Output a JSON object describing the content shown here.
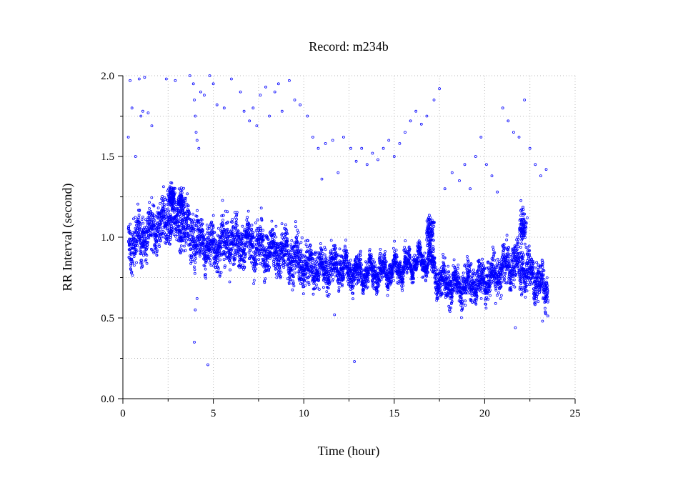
{
  "chart_data": {
    "type": "scatter",
    "title": "Record:  m234b",
    "xlabel": "Time (hour)",
    "ylabel": "RR Interval (second)",
    "xlim": [
      0,
      25
    ],
    "ylim": [
      0.0,
      2.0
    ],
    "x_ticks": [
      "0",
      "5",
      "10",
      "15",
      "20",
      "25"
    ],
    "y_ticks": [
      "0.0",
      "0.5",
      "1.0",
      "1.5",
      "2.0"
    ],
    "x_grid_minor_step": 2.5,
    "y_grid_minor_step": 0.25,
    "grid": true,
    "marker": "open-circle",
    "series_color": "#0000ff",
    "x_range_of_record": [
      0.3,
      23.5
    ],
    "main_trend": [
      {
        "x": 0.3,
        "y": 0.95,
        "spread": 0.16
      },
      {
        "x": 1.0,
        "y": 1.0,
        "spread": 0.17
      },
      {
        "x": 2.0,
        "y": 1.08,
        "spread": 0.17
      },
      {
        "x": 3.0,
        "y": 1.1,
        "spread": 0.17
      },
      {
        "x": 4.0,
        "y": 1.0,
        "spread": 0.18
      },
      {
        "x": 5.0,
        "y": 0.93,
        "spread": 0.17
      },
      {
        "x": 6.0,
        "y": 0.98,
        "spread": 0.17
      },
      {
        "x": 7.0,
        "y": 0.95,
        "spread": 0.16
      },
      {
        "x": 8.0,
        "y": 0.92,
        "spread": 0.16
      },
      {
        "x": 9.0,
        "y": 0.9,
        "spread": 0.16
      },
      {
        "x": 10.0,
        "y": 0.83,
        "spread": 0.16
      },
      {
        "x": 11.0,
        "y": 0.8,
        "spread": 0.14
      },
      {
        "x": 12.0,
        "y": 0.82,
        "spread": 0.12
      },
      {
        "x": 13.0,
        "y": 0.78,
        "spread": 0.1
      },
      {
        "x": 14.0,
        "y": 0.78,
        "spread": 0.1
      },
      {
        "x": 15.0,
        "y": 0.8,
        "spread": 0.1
      },
      {
        "x": 16.0,
        "y": 0.84,
        "spread": 0.08
      },
      {
        "x": 17.0,
        "y": 0.86,
        "spread": 0.08
      },
      {
        "x": 17.5,
        "y": 0.72,
        "spread": 0.14
      },
      {
        "x": 18.5,
        "y": 0.7,
        "spread": 0.13
      },
      {
        "x": 19.5,
        "y": 0.72,
        "spread": 0.13
      },
      {
        "x": 20.5,
        "y": 0.76,
        "spread": 0.14
      },
      {
        "x": 21.5,
        "y": 0.84,
        "spread": 0.15
      },
      {
        "x": 22.5,
        "y": 0.78,
        "spread": 0.16
      },
      {
        "x": 23.5,
        "y": 0.66,
        "spread": 0.12
      }
    ],
    "outliers": [
      {
        "x": 0.3,
        "y": 1.62
      },
      {
        "x": 0.4,
        "y": 1.97
      },
      {
        "x": 0.5,
        "y": 1.8
      },
      {
        "x": 0.7,
        "y": 1.5
      },
      {
        "x": 0.9,
        "y": 1.98
      },
      {
        "x": 1.0,
        "y": 1.75
      },
      {
        "x": 1.1,
        "y": 1.78
      },
      {
        "x": 1.2,
        "y": 1.99
      },
      {
        "x": 1.4,
        "y": 1.77
      },
      {
        "x": 1.6,
        "y": 1.69
      },
      {
        "x": 2.4,
        "y": 1.98
      },
      {
        "x": 2.9,
        "y": 1.97
      },
      {
        "x": 3.7,
        "y": 2.0
      },
      {
        "x": 3.9,
        "y": 1.95
      },
      {
        "x": 3.95,
        "y": 1.85
      },
      {
        "x": 4.0,
        "y": 1.75
      },
      {
        "x": 4.05,
        "y": 1.65
      },
      {
        "x": 4.1,
        "y": 1.6
      },
      {
        "x": 4.2,
        "y": 1.55
      },
      {
        "x": 4.3,
        "y": 1.9
      },
      {
        "x": 4.5,
        "y": 1.88
      },
      {
        "x": 4.8,
        "y": 2.0
      },
      {
        "x": 5.0,
        "y": 1.95
      },
      {
        "x": 5.2,
        "y": 1.82
      },
      {
        "x": 5.6,
        "y": 1.8
      },
      {
        "x": 6.0,
        "y": 1.98
      },
      {
        "x": 6.5,
        "y": 1.9
      },
      {
        "x": 6.7,
        "y": 1.78
      },
      {
        "x": 7.0,
        "y": 1.72
      },
      {
        "x": 7.2,
        "y": 1.8
      },
      {
        "x": 7.4,
        "y": 1.69
      },
      {
        "x": 7.6,
        "y": 1.88
      },
      {
        "x": 7.9,
        "y": 1.93
      },
      {
        "x": 8.1,
        "y": 1.75
      },
      {
        "x": 8.4,
        "y": 1.9
      },
      {
        "x": 8.6,
        "y": 1.95
      },
      {
        "x": 8.8,
        "y": 1.78
      },
      {
        "x": 9.2,
        "y": 1.97
      },
      {
        "x": 9.5,
        "y": 1.85
      },
      {
        "x": 9.8,
        "y": 1.82
      },
      {
        "x": 10.2,
        "y": 1.75
      },
      {
        "x": 10.5,
        "y": 1.62
      },
      {
        "x": 10.8,
        "y": 1.55
      },
      {
        "x": 11.0,
        "y": 1.36
      },
      {
        "x": 11.2,
        "y": 1.58
      },
      {
        "x": 11.6,
        "y": 1.6
      },
      {
        "x": 11.9,
        "y": 1.4
      },
      {
        "x": 12.2,
        "y": 1.62
      },
      {
        "x": 12.6,
        "y": 1.55
      },
      {
        "x": 12.9,
        "y": 1.47
      },
      {
        "x": 13.2,
        "y": 1.55
      },
      {
        "x": 13.5,
        "y": 1.45
      },
      {
        "x": 13.8,
        "y": 1.52
      },
      {
        "x": 14.1,
        "y": 1.48
      },
      {
        "x": 14.4,
        "y": 1.55
      },
      {
        "x": 14.7,
        "y": 1.6
      },
      {
        "x": 15.0,
        "y": 1.5
      },
      {
        "x": 15.3,
        "y": 1.58
      },
      {
        "x": 15.6,
        "y": 1.65
      },
      {
        "x": 15.9,
        "y": 1.72
      },
      {
        "x": 16.2,
        "y": 1.78
      },
      {
        "x": 16.5,
        "y": 1.7
      },
      {
        "x": 16.8,
        "y": 1.75
      },
      {
        "x": 17.2,
        "y": 1.85
      },
      {
        "x": 17.5,
        "y": 1.92
      },
      {
        "x": 17.8,
        "y": 1.3
      },
      {
        "x": 18.2,
        "y": 1.4
      },
      {
        "x": 18.6,
        "y": 1.35
      },
      {
        "x": 18.9,
        "y": 1.45
      },
      {
        "x": 19.2,
        "y": 1.3
      },
      {
        "x": 19.5,
        "y": 1.5
      },
      {
        "x": 19.8,
        "y": 1.62
      },
      {
        "x": 20.1,
        "y": 1.45
      },
      {
        "x": 20.4,
        "y": 1.38
      },
      {
        "x": 20.7,
        "y": 1.28
      },
      {
        "x": 21.0,
        "y": 1.8
      },
      {
        "x": 21.3,
        "y": 1.72
      },
      {
        "x": 21.6,
        "y": 1.65
      },
      {
        "x": 21.9,
        "y": 1.62
      },
      {
        "x": 22.2,
        "y": 1.85
      },
      {
        "x": 22.5,
        "y": 1.55
      },
      {
        "x": 22.8,
        "y": 1.45
      },
      {
        "x": 23.1,
        "y": 1.38
      },
      {
        "x": 23.4,
        "y": 1.42
      },
      {
        "x": 3.95,
        "y": 0.35
      },
      {
        "x": 4.0,
        "y": 0.55
      },
      {
        "x": 4.1,
        "y": 0.62
      },
      {
        "x": 4.7,
        "y": 0.21
      },
      {
        "x": 11.7,
        "y": 0.52
      },
      {
        "x": 12.8,
        "y": 0.23
      },
      {
        "x": 21.7,
        "y": 0.44
      },
      {
        "x": 23.2,
        "y": 0.48
      }
    ],
    "bursts": [
      {
        "x": 2.7,
        "y": 1.25,
        "spread": 0.12
      },
      {
        "x": 3.2,
        "y": 1.22,
        "spread": 0.12
      },
      {
        "x": 17.0,
        "y": 1.05,
        "spread": 0.12
      },
      {
        "x": 22.1,
        "y": 1.05,
        "spread": 0.18
      }
    ]
  }
}
